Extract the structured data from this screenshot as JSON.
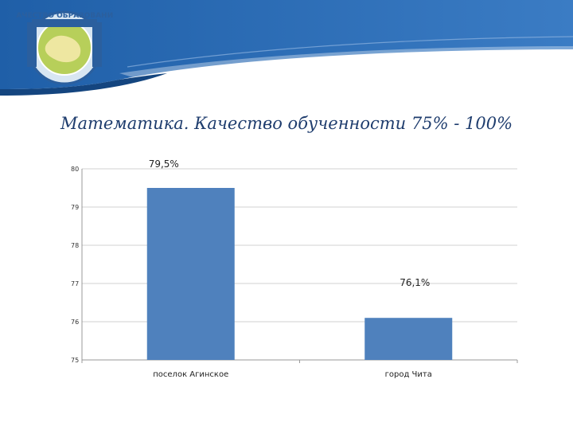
{
  "header": {
    "logo_text": "КАЧЕСТВО ОБРАЗОВАНИЯ"
  },
  "colors": {
    "bar": "#4f81bd",
    "header_blue": "#2a67ad",
    "title": "#1f3d6e"
  },
  "chart_data": {
    "type": "bar",
    "title": "Математика. Качество обученности 75% - 100%",
    "categories": [
      "поселок Агинское",
      "город Чита"
    ],
    "values": [
      79.5,
      76.1
    ],
    "data_labels": [
      "79,5%",
      "76,1%"
    ],
    "ylim": [
      75,
      80
    ],
    "yticks": [
      "75",
      "76",
      "77",
      "78",
      "79",
      "80"
    ],
    "xlabel": "",
    "ylabel": "",
    "grid": true,
    "legend": "none"
  }
}
